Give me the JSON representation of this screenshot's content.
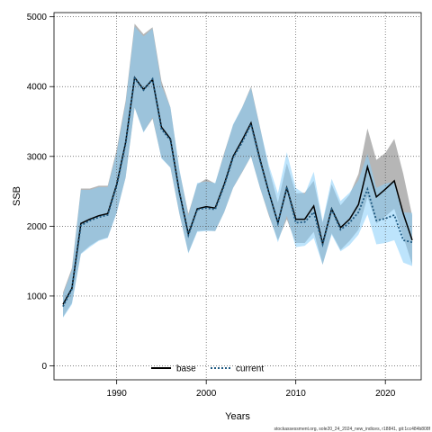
{
  "chart_data": {
    "type": "line",
    "xlabel": "Years",
    "ylabel": "SSB",
    "xlim": [
      1983,
      2024
    ],
    "ylim": [
      -200,
      5060
    ],
    "x_ticks": [
      1990,
      2000,
      2010,
      2020
    ],
    "y_ticks": [
      0,
      1000,
      2000,
      3000,
      4000,
      5000
    ],
    "grid": true,
    "legend_position": "bottom",
    "x": [
      1984,
      1985,
      1986,
      1987,
      1988,
      1989,
      1990,
      1991,
      1992,
      1993,
      1994,
      1995,
      1996,
      1997,
      1998,
      1999,
      2000,
      2001,
      2002,
      2003,
      2004,
      2005,
      2006,
      2007,
      2008,
      2009,
      2010,
      2011,
      2012,
      2013,
      2014,
      2015,
      2016,
      2017,
      2018,
      2019,
      2020,
      2021,
      2022,
      2023
    ],
    "series": [
      {
        "name": "base",
        "color": "#000000",
        "band_color": "#a9a9a9",
        "line_style": "solid",
        "values": [
          880,
          1110,
          2040,
          2100,
          2150,
          2180,
          2600,
          3200,
          4130,
          3960,
          4100,
          3420,
          3250,
          2490,
          1890,
          2250,
          2280,
          2260,
          2600,
          3000,
          3230,
          3480,
          2960,
          2480,
          2050,
          2550,
          2100,
          2100,
          2290,
          1750,
          2250,
          1980,
          2100,
          2310,
          2850,
          2420,
          2530,
          2650,
          2180,
          1800
        ],
        "lower": [
          700,
          900,
          1610,
          1720,
          1800,
          1840,
          2200,
          2700,
          3700,
          3350,
          3540,
          2980,
          2840,
          2180,
          1620,
          1930,
          1940,
          1930,
          2200,
          2550,
          2770,
          3000,
          2550,
          2150,
          1800,
          2100,
          1760,
          1760,
          1920,
          1450,
          1900,
          1660,
          1790,
          1950,
          2420,
          2040,
          2140,
          2250,
          1850,
          1450
        ],
        "upper": [
          1050,
          1400,
          2540,
          2540,
          2580,
          2580,
          3100,
          3800,
          4900,
          4750,
          4850,
          4080,
          3700,
          2800,
          2180,
          2600,
          2680,
          2610,
          3050,
          3450,
          3700,
          4000,
          3420,
          2820,
          2340,
          2900,
          2470,
          2480,
          2650,
          2050,
          2600,
          2300,
          2450,
          2750,
          3400,
          2950,
          3050,
          3250,
          2750,
          2150
        ]
      },
      {
        "name": "current",
        "color": "#1f5a82",
        "band_color": "#87cefa",
        "line_style": "dotted",
        "values": [
          850,
          1100,
          2010,
          2080,
          2130,
          2160,
          2580,
          3180,
          4120,
          3950,
          4110,
          3390,
          3230,
          2480,
          1870,
          2240,
          2260,
          2240,
          2580,
          2980,
          3200,
          3460,
          2940,
          2490,
          2040,
          2560,
          2050,
          2060,
          2200,
          1740,
          2240,
          1950,
          2050,
          2200,
          2530,
          2080,
          2110,
          2160,
          1800,
          1770
        ],
        "lower": [
          690,
          880,
          1600,
          1700,
          1790,
          1830,
          2190,
          2700,
          3700,
          3340,
          3560,
          2970,
          2840,
          2180,
          1610,
          1920,
          1930,
          1930,
          2200,
          2550,
          2780,
          3000,
          2550,
          2170,
          1770,
          2150,
          1700,
          1720,
          1830,
          1450,
          1880,
          1640,
          1730,
          1880,
          2170,
          1740,
          1760,
          1800,
          1480,
          1430
        ],
        "upper": [
          1020,
          1370,
          2520,
          2520,
          2560,
          2560,
          3060,
          3760,
          4860,
          4720,
          4830,
          4020,
          3700,
          2820,
          2150,
          2620,
          2640,
          2620,
          3030,
          3460,
          3700,
          3980,
          3410,
          2870,
          2470,
          3060,
          2550,
          2460,
          2780,
          2070,
          2680,
          2360,
          2480,
          2660,
          3040,
          2550,
          2610,
          2640,
          2200,
          2190
        ]
      }
    ]
  },
  "footer_text": "stockassessment.org, sole20_24_2024_new_indices, r18841, git:1cc484b808f"
}
